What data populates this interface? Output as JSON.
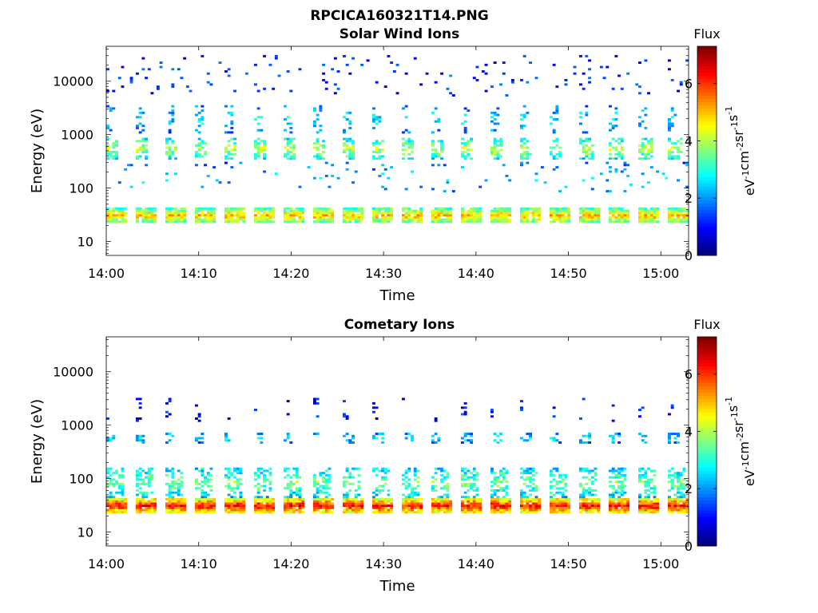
{
  "figure": {
    "title": "RPCICA160321T14.PNG"
  },
  "colorbar": {
    "label": "Flux",
    "units_base": "eV",
    "units_parts": [
      "eV",
      "-1",
      "cm",
      "-2",
      "sr",
      "-1",
      "s",
      "-1"
    ],
    "range": [
      0,
      7.3
    ],
    "ticks": [
      0,
      2,
      4,
      6
    ],
    "tick_labels": [
      "0",
      "2",
      "4",
      "6"
    ],
    "colormap": "jet"
  },
  "chart_data": [
    {
      "type": "heatmap",
      "title": "Solar Wind Ions",
      "xlabel": "Time",
      "ylabel": "Energy (eV)",
      "x_ticks": [
        "14:00",
        "14:10",
        "14:20",
        "14:30",
        "14:40",
        "14:50",
        "15:00"
      ],
      "x_range_minutes": [
        0,
        63
      ],
      "y_scale": "log",
      "y_range": [
        5.5,
        45000
      ],
      "y_ticks": [
        10,
        100,
        1000,
        10000
      ],
      "y_tick_labels": [
        "10",
        "100",
        "1000",
        "10000"
      ],
      "scan_period_minutes": 3.2,
      "bands": [
        {
          "energy_low": 22,
          "energy_high": 42,
          "flux": 5.0,
          "occupancy": 0.92,
          "sweep_width_minutes": 2.2
        },
        {
          "energy_low": 350,
          "energy_high": 850,
          "flux": 4.1,
          "occupancy": 0.55,
          "sweep_width_minutes": 1.4
        },
        {
          "energy_low": 1100,
          "energy_high": 3500,
          "flux": 2.6,
          "occupancy": 0.25,
          "sweep_width_minutes": 0.9
        },
        {
          "energy_low": 5000,
          "energy_high": 30000,
          "flux": 1.4,
          "occupancy": 0.035,
          "sweep_width_minutes": 3.0
        },
        {
          "energy_low": 80,
          "energy_high": 300,
          "flux": 2.4,
          "occupancy": 0.04,
          "sweep_width_minutes": 3.0
        }
      ]
    },
    {
      "type": "heatmap",
      "title": "Cometary Ions",
      "xlabel": "Time",
      "ylabel": "Energy (eV)",
      "x_ticks": [
        "14:00",
        "14:10",
        "14:20",
        "14:30",
        "14:40",
        "14:50",
        "15:00"
      ],
      "x_range_minutes": [
        0,
        63
      ],
      "y_scale": "log",
      "y_range": [
        5.5,
        45000
      ],
      "y_ticks": [
        10,
        100,
        1000,
        10000
      ],
      "y_tick_labels": [
        "10",
        "100",
        "1000",
        "10000"
      ],
      "scan_period_minutes": 3.2,
      "bands": [
        {
          "energy_low": 22,
          "energy_high": 44,
          "flux": 6.3,
          "occupancy": 0.96,
          "sweep_width_minutes": 2.2
        },
        {
          "energy_low": 45,
          "energy_high": 160,
          "flux": 3.6,
          "occupancy": 0.45,
          "sweep_width_minutes": 1.9
        },
        {
          "energy_low": 450,
          "energy_high": 750,
          "flux": 2.6,
          "occupancy": 0.4,
          "sweep_width_minutes": 1.1
        },
        {
          "energy_low": 1200,
          "energy_high": 3200,
          "flux": 1.2,
          "occupancy": 0.15,
          "sweep_width_minutes": 0.5
        }
      ]
    }
  ]
}
